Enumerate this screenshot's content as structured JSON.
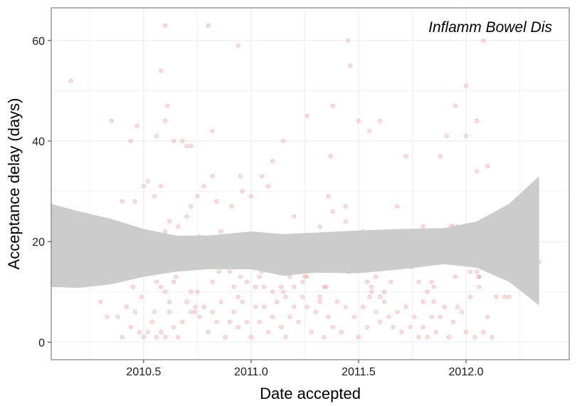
{
  "chart_data": {
    "type": "scatter",
    "title": "",
    "annotation": "Inflamm Bowel Dis",
    "xlabel": "Date accepted",
    "ylabel": "Acceptance delay (days)",
    "xlim": [
      2010.07,
      2012.48
    ],
    "ylim": [
      -3.5,
      66.5
    ],
    "x_ticks": [
      {
        "value": 2010.5,
        "label": "2010.5"
      },
      {
        "value": 2011.0,
        "label": "2011.0"
      },
      {
        "value": 2011.5,
        "label": "2011.5"
      },
      {
        "value": 2012.0,
        "label": "2012.0"
      }
    ],
    "y_ticks": [
      {
        "value": 0,
        "label": "0"
      },
      {
        "value": 20,
        "label": "20"
      },
      {
        "value": 40,
        "label": "40"
      },
      {
        "value": 60,
        "label": "60"
      }
    ],
    "grid": true,
    "colors": {
      "points": "#f08080",
      "ribbon": "#cccccc",
      "panel_border": "#7f7f7f",
      "grid": "#ebebeb"
    },
    "ribbon": {
      "x": [
        2010.07,
        2010.2,
        2010.35,
        2010.5,
        2010.65,
        2010.8,
        2011.0,
        2011.15,
        2011.3,
        2011.5,
        2011.7,
        2011.9,
        2012.05,
        2012.2,
        2012.34
      ],
      "upper": [
        27.5,
        26.0,
        24.5,
        22.5,
        21.2,
        21.2,
        22.0,
        21.5,
        21.8,
        22.2,
        22.5,
        22.7,
        24.0,
        27.5,
        33.0
      ],
      "lower": [
        11.0,
        10.8,
        11.5,
        13.0,
        14.0,
        14.5,
        14.5,
        13.2,
        13.8,
        13.7,
        14.5,
        15.5,
        14.8,
        12.0,
        7.3
      ]
    },
    "points": [
      [
        2010.16,
        52
      ],
      [
        2010.58,
        54
      ],
      [
        2010.6,
        63
      ],
      [
        2010.61,
        47
      ],
      [
        2010.8,
        63
      ],
      [
        2010.94,
        59
      ],
      [
        2011.45,
        60
      ],
      [
        2011.46,
        55
      ],
      [
        2012.08,
        60
      ],
      [
        2012.0,
        51
      ],
      [
        2010.35,
        44
      ],
      [
        2010.47,
        43
      ],
      [
        2010.44,
        40
      ],
      [
        2010.56,
        41
      ],
      [
        2010.6,
        44
      ],
      [
        2010.64,
        40
      ],
      [
        2010.68,
        40
      ],
      [
        2010.7,
        39
      ],
      [
        2010.72,
        39
      ],
      [
        2010.82,
        42
      ],
      [
        2011.15,
        40
      ],
      [
        2011.26,
        45
      ],
      [
        2011.38,
        47
      ],
      [
        2011.5,
        44
      ],
      [
        2011.55,
        42
      ],
      [
        2011.6,
        44
      ],
      [
        2011.72,
        37
      ],
      [
        2011.88,
        37
      ],
      [
        2011.91,
        41
      ],
      [
        2011.95,
        47
      ],
      [
        2012.0,
        41
      ],
      [
        2012.05,
        44
      ],
      [
        2012.1,
        35
      ],
      [
        2012.05,
        34
      ],
      [
        2011.37,
        37
      ],
      [
        2011.1,
        36
      ],
      [
        2011.05,
        33
      ],
      [
        2011.0,
        29
      ],
      [
        2010.95,
        33
      ],
      [
        2010.91,
        27
      ],
      [
        2010.82,
        33
      ],
      [
        2010.78,
        31
      ],
      [
        2010.75,
        29
      ],
      [
        2010.7,
        25
      ],
      [
        2010.66,
        23
      ],
      [
        2010.62,
        24
      ],
      [
        2010.58,
        31
      ],
      [
        2010.55,
        29
      ],
      [
        2010.52,
        32
      ],
      [
        2010.5,
        31
      ],
      [
        2010.46,
        28
      ],
      [
        2010.4,
        28
      ],
      [
        2010.22,
        13
      ],
      [
        2010.3,
        8
      ],
      [
        2010.33,
        5
      ],
      [
        2010.36,
        12
      ],
      [
        2010.38,
        14
      ],
      [
        2010.4,
        19
      ],
      [
        2010.41,
        18
      ],
      [
        2010.43,
        21
      ],
      [
        2010.45,
        16
      ],
      [
        2010.47,
        15
      ],
      [
        2010.49,
        9
      ],
      [
        2010.5,
        17
      ],
      [
        2010.52,
        17
      ],
      [
        2010.54,
        15
      ],
      [
        2010.56,
        12
      ],
      [
        2010.58,
        11
      ],
      [
        2010.6,
        10
      ],
      [
        2010.62,
        8
      ],
      [
        2010.64,
        12
      ],
      [
        2010.66,
        17
      ],
      [
        2010.68,
        19
      ],
      [
        2010.7,
        18
      ],
      [
        2010.72,
        10
      ],
      [
        2010.74,
        7
      ],
      [
        2010.76,
        21
      ],
      [
        2010.78,
        17
      ],
      [
        2010.8,
        19
      ],
      [
        2010.82,
        12
      ],
      [
        2010.84,
        18
      ],
      [
        2010.86,
        22
      ],
      [
        2010.88,
        17
      ],
      [
        2010.9,
        14
      ],
      [
        2010.92,
        11
      ],
      [
        2010.94,
        9
      ],
      [
        2010.96,
        17
      ],
      [
        2010.98,
        12
      ],
      [
        2011.0,
        15
      ],
      [
        2011.02,
        11
      ],
      [
        2011.04,
        13
      ],
      [
        2011.06,
        11
      ],
      [
        2011.08,
        17
      ],
      [
        2011.1,
        10
      ],
      [
        2011.12,
        15
      ],
      [
        2011.14,
        11
      ],
      [
        2011.16,
        9
      ],
      [
        2011.18,
        13
      ],
      [
        2011.2,
        11
      ],
      [
        2011.22,
        16
      ],
      [
        2011.24,
        12
      ],
      [
        2011.26,
        13
      ],
      [
        2011.28,
        16
      ],
      [
        2011.3,
        17
      ],
      [
        2011.32,
        9
      ],
      [
        2011.34,
        11
      ],
      [
        2011.36,
        29
      ],
      [
        2011.38,
        26
      ],
      [
        2011.4,
        21
      ],
      [
        2011.42,
        19
      ],
      [
        2011.44,
        27
      ],
      [
        2011.46,
        18
      ],
      [
        2011.48,
        17
      ],
      [
        2011.5,
        15
      ],
      [
        2011.52,
        22
      ],
      [
        2011.54,
        12
      ],
      [
        2011.56,
        11
      ],
      [
        2011.58,
        13
      ],
      [
        2011.6,
        9
      ],
      [
        2011.62,
        10
      ],
      [
        2011.64,
        19
      ],
      [
        2011.66,
        17
      ],
      [
        2011.68,
        19
      ],
      [
        2011.7,
        16
      ],
      [
        2011.72,
        18
      ],
      [
        2011.74,
        15
      ],
      [
        2011.76,
        22
      ],
      [
        2011.78,
        12
      ],
      [
        2011.8,
        8
      ],
      [
        2011.82,
        10
      ],
      [
        2011.84,
        12
      ],
      [
        2011.86,
        22
      ],
      [
        2011.88,
        17
      ],
      [
        2011.9,
        17
      ],
      [
        2011.92,
        19
      ],
      [
        2011.94,
        23
      ],
      [
        2011.96,
        19
      ],
      [
        2011.98,
        18
      ],
      [
        2012.0,
        19
      ],
      [
        2012.02,
        16
      ],
      [
        2012.04,
        20
      ],
      [
        2012.06,
        13
      ],
      [
        2012.08,
        19
      ],
      [
        2012.1,
        15
      ],
      [
        2012.12,
        14
      ],
      [
        2012.14,
        21
      ],
      [
        2012.16,
        16
      ],
      [
        2012.18,
        9
      ],
      [
        2012.2,
        9
      ],
      [
        2012.32,
        10
      ],
      [
        2012.34,
        16
      ],
      [
        2012.12,
        18
      ],
      [
        2012.1,
        21
      ],
      [
        2012.06,
        13
      ],
      [
        2012.02,
        14
      ],
      [
        2011.98,
        17
      ],
      [
        2011.96,
        23
      ],
      [
        2011.93,
        23
      ],
      [
        2011.91,
        22
      ],
      [
        2011.85,
        8
      ],
      [
        2010.5,
        1
      ],
      [
        2010.52,
        2
      ],
      [
        2010.54,
        4
      ],
      [
        2010.56,
        1
      ],
      [
        2010.58,
        2
      ],
      [
        2010.6,
        1
      ],
      [
        2010.62,
        6
      ],
      [
        2010.64,
        3
      ],
      [
        2010.66,
        1
      ],
      [
        2010.68,
        4
      ],
      [
        2010.7,
        8
      ],
      [
        2010.72,
        6
      ],
      [
        2010.74,
        6
      ],
      [
        2010.76,
        5
      ],
      [
        2010.78,
        7
      ],
      [
        2010.8,
        2
      ],
      [
        2010.82,
        6
      ],
      [
        2010.84,
        4
      ],
      [
        2010.86,
        8
      ],
      [
        2010.88,
        1
      ],
      [
        2010.9,
        4
      ],
      [
        2010.92,
        6
      ],
      [
        2010.94,
        3
      ],
      [
        2010.96,
        8
      ],
      [
        2010.98,
        4
      ],
      [
        2011.0,
        1
      ],
      [
        2011.02,
        7
      ],
      [
        2011.04,
        4
      ],
      [
        2011.06,
        7
      ],
      [
        2011.08,
        2
      ],
      [
        2011.1,
        5
      ],
      [
        2011.12,
        8
      ],
      [
        2011.14,
        3
      ],
      [
        2011.16,
        1
      ],
      [
        2011.18,
        5
      ],
      [
        2011.2,
        7
      ],
      [
        2011.22,
        4
      ],
      [
        2011.24,
        9
      ],
      [
        2011.26,
        7
      ],
      [
        2011.28,
        2
      ],
      [
        2011.3,
        6
      ],
      [
        2011.32,
        8
      ],
      [
        2011.34,
        1
      ],
      [
        2011.36,
        5
      ],
      [
        2011.38,
        3
      ],
      [
        2011.4,
        8
      ],
      [
        2011.42,
        2
      ],
      [
        2011.44,
        7
      ],
      [
        2011.46,
        14
      ],
      [
        2011.48,
        5
      ],
      [
        2011.5,
        1
      ],
      [
        2011.52,
        7
      ],
      [
        2011.54,
        3
      ],
      [
        2011.56,
        10
      ],
      [
        2011.58,
        6
      ],
      [
        2011.6,
        4
      ],
      [
        2011.62,
        8
      ],
      [
        2011.64,
        5
      ],
      [
        2011.66,
        3
      ],
      [
        2011.68,
        6
      ],
      [
        2011.7,
        2
      ],
      [
        2011.72,
        7
      ],
      [
        2011.74,
        3
      ],
      [
        2011.76,
        5
      ],
      [
        2011.78,
        1
      ],
      [
        2011.8,
        3
      ],
      [
        2011.82,
        1
      ],
      [
        2011.84,
        5
      ],
      [
        2011.86,
        2
      ],
      [
        2011.88,
        5
      ],
      [
        2011.9,
        7
      ],
      [
        2011.92,
        1
      ],
      [
        2011.94,
        4
      ],
      [
        2011.96,
        7
      ],
      [
        2011.98,
        6
      ],
      [
        2012.0,
        2
      ],
      [
        2012.02,
        9
      ],
      [
        2012.04,
        1
      ],
      [
        2012.06,
        11
      ],
      [
        2012.08,
        2
      ],
      [
        2012.1,
        5
      ],
      [
        2012.12,
        1
      ],
      [
        2012.14,
        9
      ],
      [
        2010.42,
        7
      ],
      [
        2010.44,
        3
      ],
      [
        2010.46,
        6
      ],
      [
        2010.48,
        2
      ],
      [
        2010.4,
        1
      ],
      [
        2010.38,
        5
      ],
      [
        2010.45,
        11
      ],
      [
        2010.55,
        6
      ],
      [
        2010.65,
        13
      ],
      [
        2010.75,
        10
      ],
      [
        2010.85,
        14
      ],
      [
        2010.95,
        13
      ],
      [
        2011.05,
        14
      ],
      [
        2011.15,
        10
      ],
      [
        2011.25,
        13
      ],
      [
        2011.35,
        11
      ],
      [
        2011.45,
        14
      ],
      [
        2011.55,
        9
      ],
      [
        2011.65,
        12
      ],
      [
        2011.75,
        15
      ],
      [
        2011.85,
        11
      ],
      [
        2011.95,
        13
      ],
      [
        2012.05,
        14
      ],
      [
        2010.6,
        22
      ],
      [
        2010.72,
        27
      ],
      [
        2010.84,
        28
      ],
      [
        2010.96,
        30
      ],
      [
        2011.08,
        31
      ],
      [
        2011.2,
        25
      ],
      [
        2011.32,
        23
      ],
      [
        2011.44,
        24
      ],
      [
        2011.56,
        21
      ],
      [
        2011.68,
        27
      ],
      [
        2011.8,
        23
      ],
      [
        2011.92,
        21
      ],
      [
        2012.04,
        22
      ],
      [
        2012.16,
        19
      ]
    ]
  }
}
